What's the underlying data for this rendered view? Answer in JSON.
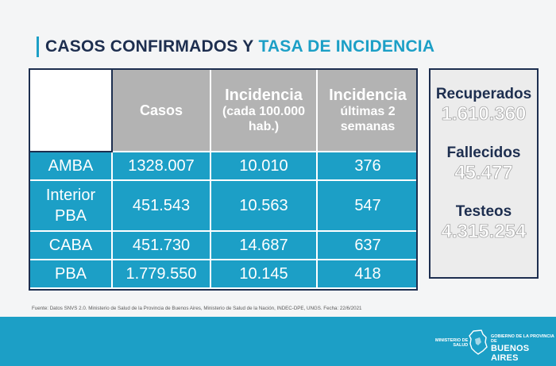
{
  "title": {
    "part1": "CASOS CONFIRMADOS Y",
    "part2": "TASA DE INCIDENCIA"
  },
  "table": {
    "headers": [
      "",
      "Casos",
      "Incidencia (cada 100.000 hab.)",
      "Incidencia últimas 2 semanas"
    ],
    "rows": [
      [
        "AMBA",
        "1328.007",
        "10.010",
        "376"
      ],
      [
        "Interior PBA",
        "451.543",
        "10.563",
        "547"
      ],
      [
        "CABA",
        "451.730",
        "14.687",
        "637"
      ],
      [
        "PBA",
        "1.779.550",
        "10.145",
        "418"
      ]
    ]
  },
  "stats": [
    {
      "label": "Recuperados",
      "value": "1.610.360"
    },
    {
      "label": "Fallecidos",
      "value": "45.477"
    },
    {
      "label": "Testeos",
      "value": "4.315.254"
    }
  ],
  "source": "Fuente: Datos SNVS 2.0. Ministerio de Salud de la Provincia de Buenos Aires, Ministerio de Salud de la Nación, INDEC-DPE, UNGS. Fecha: 22/6/2021",
  "footer": {
    "ministry_line1": "MINISTERIO DE",
    "ministry_line2": "SALUD",
    "gov_line": "GOBIERNO DE LA PROVINCIA DE",
    "province": "BUENOS AIRES"
  },
  "colors": {
    "accent": "#1c9fc6",
    "navy": "#1d2e4f",
    "header_gray": "#b3b3b3"
  }
}
